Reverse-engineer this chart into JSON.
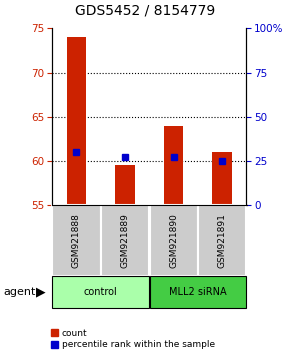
{
  "title": "GDS5452 / 8154779",
  "samples": [
    "GSM921888",
    "GSM921889",
    "GSM921890",
    "GSM921891"
  ],
  "counts": [
    74.0,
    59.5,
    64.0,
    61.0
  ],
  "percentiles": [
    61.0,
    60.5,
    60.5,
    60.0
  ],
  "ylim_left": [
    55,
    75
  ],
  "yticks_left": [
    55,
    60,
    65,
    70,
    75
  ],
  "ylim_right": [
    0,
    100
  ],
  "yticks_right": [
    0,
    25,
    50,
    75,
    100
  ],
  "yticklabels_right": [
    "0",
    "25",
    "50",
    "75",
    "100%"
  ],
  "bar_color": "#cc2200",
  "percentile_color": "#0000cc",
  "bar_width": 0.4,
  "groups": [
    {
      "label": "control",
      "samples": [
        0,
        1
      ],
      "color": "#aaffaa"
    },
    {
      "label": "MLL2 siRNA",
      "samples": [
        2,
        3
      ],
      "color": "#44cc44"
    }
  ],
  "agent_label": "agent",
  "legend_count_label": "count",
  "legend_percentile_label": "percentile rank within the sample",
  "title_fontsize": 10,
  "tick_fontsize": 7.5,
  "sample_label_fontsize": 6.5,
  "group_label_fontsize": 7,
  "legend_fontsize": 6.5,
  "agent_fontsize": 8,
  "sample_box_color": "#cccccc",
  "left_tick_color": "#cc2200",
  "right_tick_color": "#0000cc",
  "grid_ticks": [
    60,
    65,
    70
  ]
}
